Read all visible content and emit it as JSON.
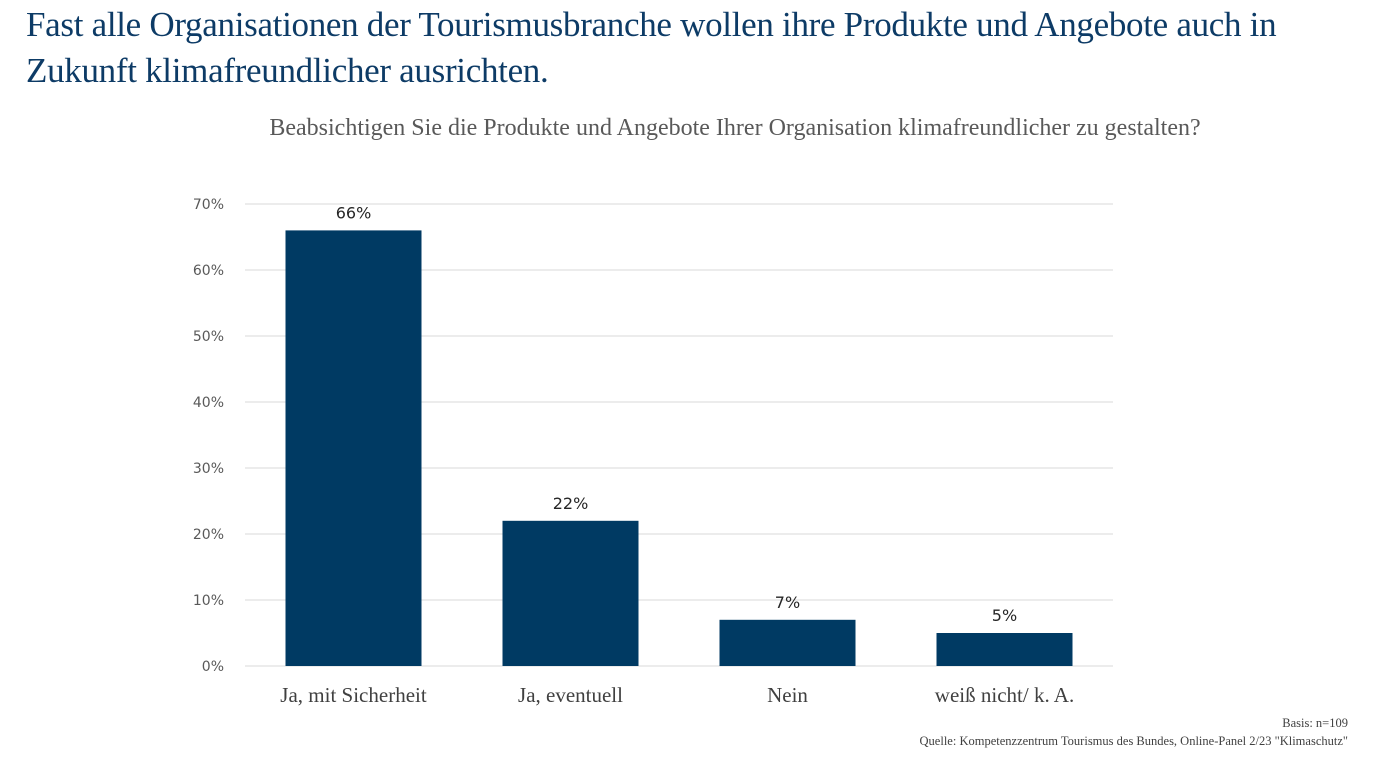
{
  "headline": "Fast alle Organisationen der Tourismusbranche wollen ihre Produkte und Angebote auch in Zukunft klimafreundlicher ausrichten.",
  "footer": {
    "basis": "Basis: n=109",
    "source": "Quelle: Kompetenzzentrum Tourismus des Bundes, Online-Panel 2/23 \"Klimaschutz\""
  },
  "colors": {
    "bar": "#003a63",
    "headline": "#0d3b66",
    "grid": "#d9d9d9"
  },
  "chart_data": {
    "type": "bar",
    "title": "Beabsichtigen Sie die Produkte und Angebote Ihrer Organisation klimafreundlicher zu gestalten?",
    "xlabel": "",
    "ylabel": "",
    "categories": [
      "Ja, mit Sicherheit",
      "Ja, eventuell",
      "Nein",
      "weiß nicht/ k. A."
    ],
    "values": [
      66,
      22,
      7,
      5
    ],
    "data_labels": [
      "66%",
      "22%",
      "7%",
      "5%"
    ],
    "ylim": [
      0,
      70
    ],
    "yticks": [
      0,
      10,
      20,
      30,
      40,
      50,
      60,
      70
    ],
    "ytick_labels": [
      "0%",
      "10%",
      "20%",
      "30%",
      "40%",
      "50%",
      "60%",
      "70%"
    ],
    "grid": true,
    "legend": "none"
  }
}
